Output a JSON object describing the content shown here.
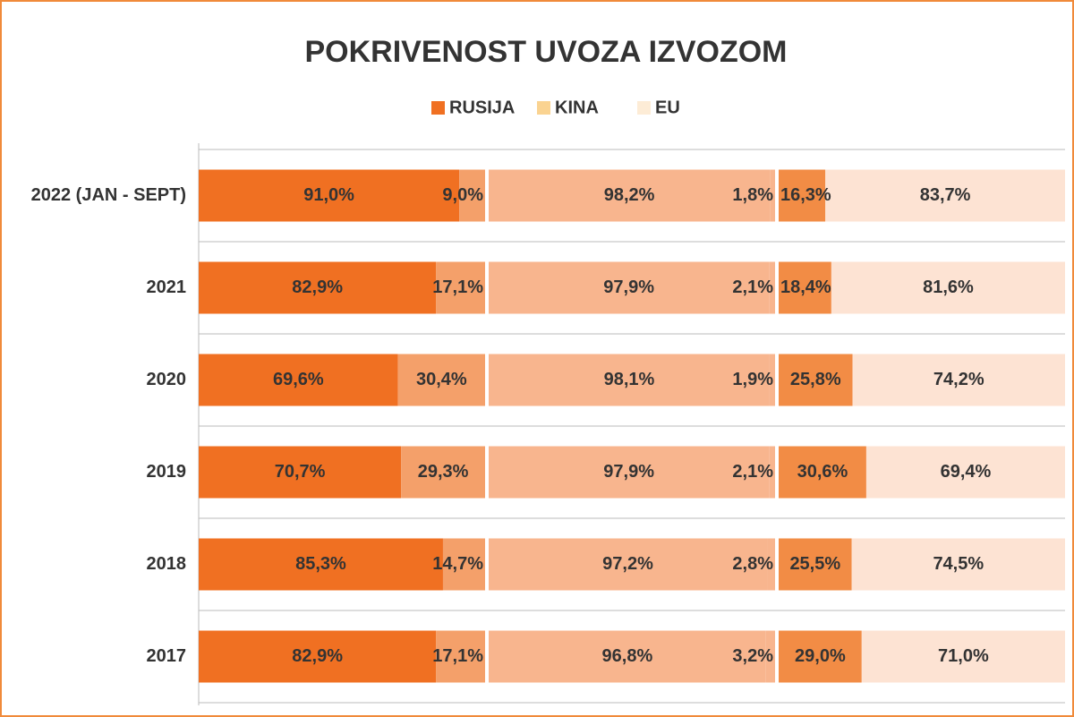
{
  "chart_data": {
    "type": "grouped-stacked-bar",
    "title": "POKRIVENOST UVOZA IZVOZOM",
    "categories": [
      "2022 (JAN - SEPT)",
      "2021",
      "2020",
      "2019",
      "2018",
      "2017"
    ],
    "groups": [
      {
        "name": "RUSIJA",
        "color": "#f07022",
        "series": [
          {
            "color": "#f07022",
            "values": [
              91.0,
              82.9,
              69.6,
              70.7,
              85.3,
              82.9
            ],
            "value_labels": [
              "91,0%",
              "82,9%",
              "69,6%",
              "70,7%",
              "85,3%",
              "82,9%"
            ]
          },
          {
            "color": "#f4a06a",
            "values": [
              9.0,
              17.1,
              30.4,
              29.3,
              14.7,
              17.1
            ],
            "value_labels": [
              "9,0%",
              "17,1%",
              "30,4%",
              "29,3%",
              "14,7%",
              "17,1%"
            ]
          }
        ]
      },
      {
        "name": "KINA",
        "color": "#fad391",
        "series": [
          {
            "color": "#f8b58e",
            "values": [
              98.2,
              97.9,
              98.1,
              97.9,
              97.2,
              96.8
            ],
            "value_labels": [
              "98,2%",
              "97,9%",
              "98,1%",
              "97,9%",
              "97,2%",
              "96,8%"
            ]
          },
          {
            "color": "#f8b58e",
            "values": [
              1.8,
              2.1,
              1.9,
              2.1,
              2.8,
              3.2
            ],
            "value_labels": [
              "1,8%",
              "2,1%",
              "1,9%",
              "2,1%",
              "2,8%",
              "3,2%"
            ]
          }
        ]
      },
      {
        "name": "EU",
        "color": "#fdecd6",
        "series": [
          {
            "color": "#f28c45",
            "values": [
              16.3,
              18.4,
              25.8,
              30.6,
              25.5,
              29.0
            ],
            "value_labels": [
              "16,3%",
              "18,4%",
              "25,8%",
              "30,6%",
              "25,5%",
              "29,0%"
            ]
          },
          {
            "color": "#fde3d3",
            "values": [
              83.7,
              81.6,
              74.2,
              69.4,
              74.5,
              71.0
            ],
            "value_labels": [
              "83,7%",
              "81,6%",
              "74,2%",
              "69,4%",
              "74,5%",
              "71,0%"
            ]
          }
        ]
      }
    ]
  }
}
